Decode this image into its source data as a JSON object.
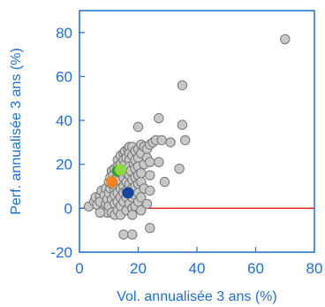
{
  "chart_data": {
    "type": "scatter",
    "xlabel": "Vol. annualisée 3 ans (%)",
    "ylabel": "Perf. annualisée 3 ans (%)",
    "xlim": [
      0,
      80
    ],
    "ylim": [
      -20,
      90
    ],
    "x_ticks": [
      "0",
      "20",
      "40",
      "60",
      "80"
    ],
    "y_ticks": [
      "-20",
      "0",
      "20",
      "40",
      "60",
      "80"
    ],
    "reference_line": {
      "y": 0,
      "color": "#e02020"
    },
    "colors": {
      "axis": "#1f6fd1",
      "point_fill": "#c8c8c8",
      "point_stroke": "#777777"
    },
    "series": [
      {
        "role": "universe",
        "color": "#c8c8c8",
        "points": [
          [
            3.2,
            0.8
          ],
          [
            5,
            3
          ],
          [
            5.5,
            5
          ],
          [
            6,
            1.5
          ],
          [
            7,
            5.5
          ],
          [
            7,
            3
          ],
          [
            7.5,
            8
          ],
          [
            8,
            -1
          ],
          [
            8.5,
            6
          ],
          [
            9,
            9
          ],
          [
            9,
            2
          ],
          [
            9.5,
            -2
          ],
          [
            9.5,
            4
          ],
          [
            10,
            12
          ],
          [
            10,
            7
          ],
          [
            10,
            1
          ],
          [
            10.5,
            14
          ],
          [
            10.5,
            9
          ],
          [
            11,
            17
          ],
          [
            11,
            11
          ],
          [
            11,
            4
          ],
          [
            11,
            -2
          ],
          [
            11.5,
            15
          ],
          [
            12,
            18
          ],
          [
            12,
            13
          ],
          [
            12,
            8
          ],
          [
            12,
            6
          ],
          [
            12,
            2
          ],
          [
            12,
            -3
          ],
          [
            12.5,
            10
          ],
          [
            13,
            22
          ],
          [
            13,
            19
          ],
          [
            13,
            15
          ],
          [
            13,
            11
          ],
          [
            13,
            7
          ],
          [
            13,
            3
          ],
          [
            13,
            -1
          ],
          [
            13.5,
            13
          ],
          [
            14,
            24
          ],
          [
            14,
            20
          ],
          [
            14,
            16
          ],
          [
            14,
            9
          ],
          [
            14,
            5
          ],
          [
            14,
            1
          ],
          [
            14,
            -3
          ],
          [
            14.5,
            18
          ],
          [
            15,
            25
          ],
          [
            15,
            22
          ],
          [
            15,
            18
          ],
          [
            15,
            14
          ],
          [
            15,
            10
          ],
          [
            15,
            7
          ],
          [
            15,
            3
          ],
          [
            15.5,
            26
          ],
          [
            15.5,
            20
          ],
          [
            16,
            23
          ],
          [
            16,
            16
          ],
          [
            16,
            12
          ],
          [
            16,
            8
          ],
          [
            16,
            5
          ],
          [
            16,
            -1
          ],
          [
            16.5,
            27
          ],
          [
            17,
            28
          ],
          [
            17,
            25
          ],
          [
            17,
            22
          ],
          [
            17,
            19
          ],
          [
            17,
            15
          ],
          [
            17,
            11
          ],
          [
            17,
            2
          ],
          [
            17.5,
            17
          ],
          [
            18,
            28
          ],
          [
            18,
            24
          ],
          [
            18,
            13
          ],
          [
            18,
            9
          ],
          [
            18,
            5
          ],
          [
            18,
            0
          ],
          [
            18,
            -3
          ],
          [
            18.5,
            20
          ],
          [
            19,
            26
          ],
          [
            19,
            22
          ],
          [
            19,
            18
          ],
          [
            19,
            14
          ],
          [
            19,
            10
          ],
          [
            19,
            6
          ],
          [
            19,
            1
          ],
          [
            20,
            37
          ],
          [
            20,
            27
          ],
          [
            20,
            23
          ],
          [
            20,
            19
          ],
          [
            20,
            15
          ],
          [
            20,
            11
          ],
          [
            20,
            7
          ],
          [
            20,
            3
          ],
          [
            21,
            29
          ],
          [
            21,
            25
          ],
          [
            21,
            16
          ],
          [
            21,
            12
          ],
          [
            21,
            5
          ],
          [
            21,
            -1
          ],
          [
            22,
            28
          ],
          [
            22,
            20
          ],
          [
            22,
            9
          ],
          [
            23,
            27
          ],
          [
            23,
            23
          ],
          [
            23,
            2
          ],
          [
            24,
            29
          ],
          [
            24,
            21
          ],
          [
            24,
            15
          ],
          [
            24,
            8
          ],
          [
            25,
            30
          ],
          [
            26,
            31
          ],
          [
            27,
            21
          ],
          [
            27,
            41
          ],
          [
            28,
            31
          ],
          [
            29,
            12
          ],
          [
            31,
            30
          ],
          [
            34,
            18
          ],
          [
            35,
            56
          ],
          [
            35,
            38
          ],
          [
            36,
            31
          ],
          [
            70,
            77
          ],
          [
            15,
            -12
          ],
          [
            18,
            -12
          ],
          [
            24,
            -9
          ],
          [
            7,
            -2
          ]
        ]
      },
      {
        "role": "highlight",
        "color": "#2ea32e",
        "points": [
          [
            13,
            17
          ]
        ]
      },
      {
        "role": "highlight",
        "color": "#8ed642",
        "points": [
          [
            14,
            17.5
          ]
        ]
      },
      {
        "role": "highlight",
        "color": "#f5821f",
        "points": [
          [
            11,
            12
          ]
        ]
      },
      {
        "role": "highlight",
        "color": "#1446a0",
        "points": [
          [
            16.5,
            7
          ]
        ]
      }
    ]
  }
}
